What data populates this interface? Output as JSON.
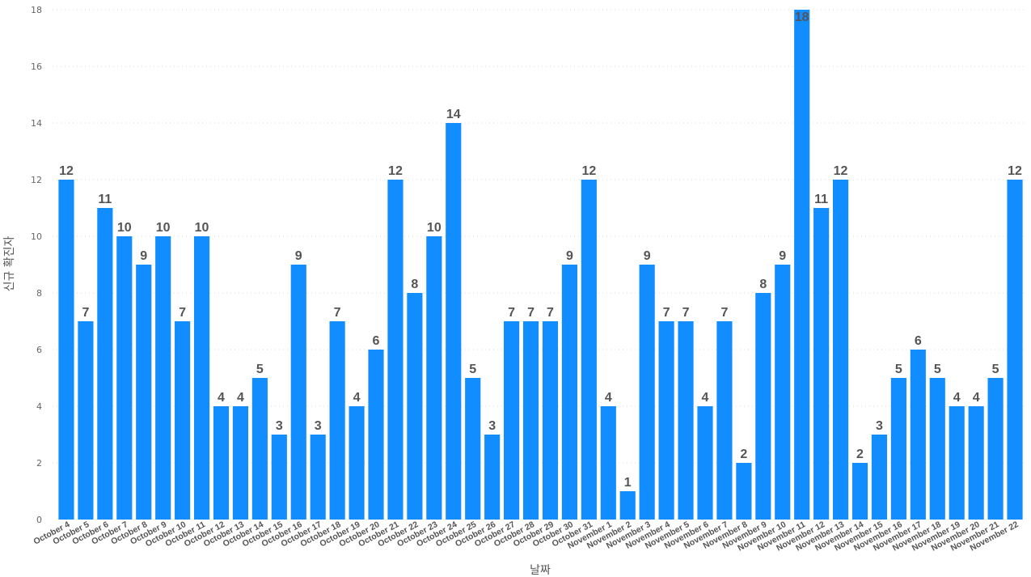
{
  "chart_data": {
    "type": "bar",
    "categories": [
      "October 4",
      "October 5",
      "October 6",
      "October 7",
      "October 8",
      "October 9",
      "October 10",
      "October 11",
      "October 12",
      "October 13",
      "October 14",
      "October 15",
      "October 16",
      "October 17",
      "October 18",
      "October 19",
      "October 20",
      "October 21",
      "October 22",
      "October 23",
      "October 24",
      "October 25",
      "October 26",
      "October 27",
      "October 28",
      "October 29",
      "October 30",
      "October 31",
      "November 1",
      "November 2",
      "November 3",
      "November 4",
      "November 5",
      "November 6",
      "November 7",
      "November 8",
      "November 9",
      "November 10",
      "November 11",
      "November 12",
      "November 13",
      "November 14",
      "November 15",
      "November 16",
      "November 17",
      "November 18",
      "November 19",
      "November 20",
      "November 21",
      "November 22"
    ],
    "values": [
      12,
      7,
      11,
      10,
      9,
      10,
      7,
      10,
      4,
      4,
      5,
      3,
      9,
      3,
      7,
      4,
      6,
      12,
      8,
      10,
      14,
      5,
      3,
      7,
      7,
      7,
      9,
      12,
      4,
      1,
      9,
      7,
      7,
      4,
      7,
      2,
      8,
      9,
      18,
      11,
      12,
      2,
      3,
      5,
      6,
      5,
      4,
      4,
      5,
      12
    ],
    "title": "",
    "xlabel": "날짜",
    "ylabel": "신규 확진자",
    "ylim": [
      0,
      18
    ],
    "yticks": [
      0,
      2,
      4,
      6,
      8,
      10,
      12,
      14,
      16,
      18
    ],
    "grid": true,
    "bar_color": "#118DFF",
    "label_color": "#555555"
  }
}
